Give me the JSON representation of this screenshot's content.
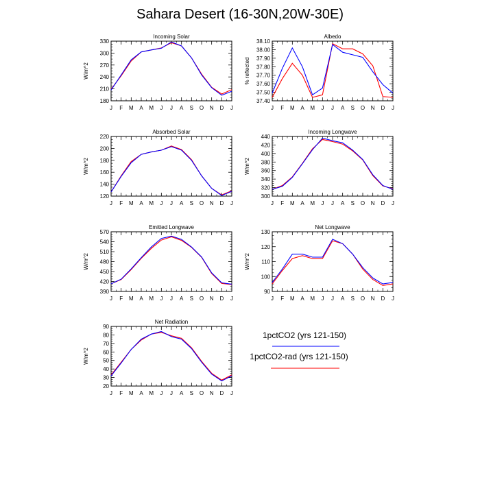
{
  "title": "Sahara Desert (16-30N,20W-30E)",
  "colors": {
    "series_1": "#0000ff",
    "series_2": "#ff0000",
    "axis": "#000000"
  },
  "legend": [
    {
      "label": "1pctCO2 (yrs 121-150)",
      "color": "#0000ff"
    },
    {
      "label": "1pctCO2-rad (yrs 121-150)",
      "color": "#ff0000"
    }
  ],
  "chart_data": [
    {
      "type": "line",
      "title": "Incoming Solar",
      "ylabel": "W/m^2",
      "categories": [
        "J",
        "F",
        "M",
        "A",
        "M",
        "J",
        "J",
        "A",
        "S",
        "O",
        "N",
        "D",
        "J"
      ],
      "ylim": [
        180,
        330
      ],
      "yticks": [
        180,
        210,
        240,
        270,
        300,
        330
      ],
      "ytick_labels": [
        "180",
        "210",
        "240",
        "270",
        "300",
        "330"
      ],
      "series": [
        {
          "name": "1pctCO2 (yrs 121-150)",
          "values": [
            207,
            245,
            283,
            303,
            308,
            312,
            328,
            318,
            288,
            245,
            213,
            194,
            204
          ]
        },
        {
          "name": "1pctCO2-rad (yrs 121-150)",
          "values": [
            209,
            243,
            280,
            303,
            308,
            313,
            326,
            318,
            288,
            247,
            214,
            197,
            208
          ]
        }
      ]
    },
    {
      "type": "line",
      "title": "Albedo",
      "ylabel": "% reflected",
      "categories": [
        "J",
        "F",
        "M",
        "A",
        "M",
        "J",
        "J",
        "A",
        "S",
        "O",
        "N",
        "D",
        "J"
      ],
      "ylim": [
        37.4,
        38.1
      ],
      "yticks": [
        37.4,
        37.5,
        37.6,
        37.7,
        37.8,
        37.9,
        38.0,
        38.1
      ],
      "ytick_labels": [
        "37.40",
        "37.50",
        "37.60",
        "37.70",
        "37.80",
        "37.90",
        "38.00",
        "38.10"
      ],
      "series": [
        {
          "name": "1pctCO2 (yrs 121-150)",
          "values": [
            37.49,
            37.78,
            38.02,
            37.8,
            37.47,
            37.55,
            38.06,
            37.97,
            37.94,
            37.91,
            37.74,
            37.59,
            37.49
          ]
        },
        {
          "name": "1pctCO2-rad (yrs 121-150)",
          "values": [
            37.44,
            37.66,
            37.84,
            37.7,
            37.44,
            37.47,
            38.07,
            38.01,
            38.01,
            37.95,
            37.81,
            37.45,
            37.44
          ]
        }
      ]
    },
    {
      "type": "line",
      "title": "Absorbed Solar",
      "ylabel": "W/m^2",
      "categories": [
        "J",
        "F",
        "M",
        "A",
        "M",
        "J",
        "J",
        "A",
        "S",
        "O",
        "N",
        "D",
        "J"
      ],
      "ylim": [
        120,
        220
      ],
      "yticks": [
        120,
        140,
        160,
        180,
        200,
        220
      ],
      "ytick_labels": [
        "120",
        "140",
        "160",
        "180",
        "200",
        "220"
      ],
      "series": [
        {
          "name": "1pctCO2 (yrs 121-150)",
          "values": [
            127,
            153,
            176,
            190,
            194,
            197,
            203,
            197,
            180,
            154,
            133,
            121,
            128
          ]
        },
        {
          "name": "1pctCO2-rad (yrs 121-150)",
          "values": [
            127,
            154,
            178,
            190,
            194,
            197,
            204,
            198,
            181,
            154,
            133,
            122,
            129
          ]
        }
      ]
    },
    {
      "type": "line",
      "title": "Incoming Longwave",
      "ylabel": "W/m^2",
      "categories": [
        "J",
        "F",
        "M",
        "A",
        "M",
        "J",
        "J",
        "A",
        "S",
        "O",
        "N",
        "D",
        "J"
      ],
      "ylim": [
        300,
        440
      ],
      "yticks": [
        300,
        320,
        340,
        360,
        380,
        400,
        420,
        440
      ],
      "ytick_labels": [
        "300",
        "320",
        "340",
        "360",
        "380",
        "400",
        "420",
        "440"
      ],
      "series": [
        {
          "name": "1pctCO2 (yrs 121-150)",
          "values": [
            316,
            323,
            344,
            376,
            409,
            436,
            430,
            425,
            408,
            386,
            350,
            325,
            316
          ]
        },
        {
          "name": "1pctCO2-rad (yrs 121-150)",
          "values": [
            316,
            325,
            345,
            377,
            411,
            433,
            428,
            422,
            406,
            385,
            348,
            324,
            317
          ]
        }
      ]
    },
    {
      "type": "line",
      "title": "Emitted Longwave",
      "ylabel": "W/m^2",
      "categories": [
        "J",
        "F",
        "M",
        "A",
        "M",
        "J",
        "J",
        "A",
        "S",
        "O",
        "N",
        "D",
        "J"
      ],
      "ylim": [
        390,
        570
      ],
      "yticks": [
        390,
        420,
        450,
        480,
        510,
        540,
        570
      ],
      "ytick_labels": [
        "390",
        "420",
        "450",
        "480",
        "510",
        "540",
        "570"
      ],
      "series": [
        {
          "name": "1pctCO2 (yrs 121-150)",
          "values": [
            413,
            427,
            458,
            492,
            524,
            550,
            557,
            547,
            524,
            494,
            446,
            416,
            412
          ]
        },
        {
          "name": "1pctCO2-rad (yrs 121-150)",
          "values": [
            413,
            426,
            456,
            490,
            520,
            545,
            555,
            544,
            523,
            493,
            444,
            414,
            411
          ]
        }
      ]
    },
    {
      "type": "line",
      "title": "Net Longwave",
      "ylabel": "W/m^2",
      "categories": [
        "J",
        "F",
        "M",
        "A",
        "M",
        "J",
        "J",
        "A",
        "S",
        "O",
        "N",
        "D",
        "J"
      ],
      "ylim": [
        90,
        130
      ],
      "yticks": [
        90,
        100,
        110,
        120,
        130
      ],
      "ytick_labels": [
        "90",
        "100",
        "110",
        "120",
        "130"
      ],
      "series": [
        {
          "name": "1pctCO2 (yrs 121-150)",
          "values": [
            96,
            105,
            115,
            115,
            113,
            113,
            125,
            122,
            115,
            106,
            99,
            95,
            96
          ]
        },
        {
          "name": "1pctCO2-rad (yrs 121-150)",
          "values": [
            95,
            104,
            112,
            114,
            112,
            112,
            124,
            122,
            115,
            105,
            98,
            94,
            95
          ]
        }
      ]
    },
    {
      "type": "line",
      "title": "Net Radiation",
      "ylabel": "W/m^2",
      "categories": [
        "J",
        "F",
        "M",
        "A",
        "M",
        "J",
        "J",
        "A",
        "S",
        "O",
        "N",
        "D",
        "J"
      ],
      "ylim": [
        20,
        90
      ],
      "yticks": [
        20,
        30,
        40,
        50,
        60,
        70,
        80,
        90
      ],
      "ytick_labels": [
        "20",
        "30",
        "40",
        "50",
        "60",
        "70",
        "80",
        "90"
      ],
      "series": [
        {
          "name": "1pctCO2 (yrs 121-150)",
          "values": [
            32,
            47,
            63,
            75,
            81,
            84,
            78,
            75,
            64,
            48,
            34,
            26,
            32
          ]
        },
        {
          "name": "1pctCO2-rad (yrs 121-150)",
          "values": [
            33,
            48,
            63,
            74,
            81,
            83,
            79,
            76,
            65,
            49,
            35,
            27,
            33
          ]
        }
      ]
    }
  ]
}
